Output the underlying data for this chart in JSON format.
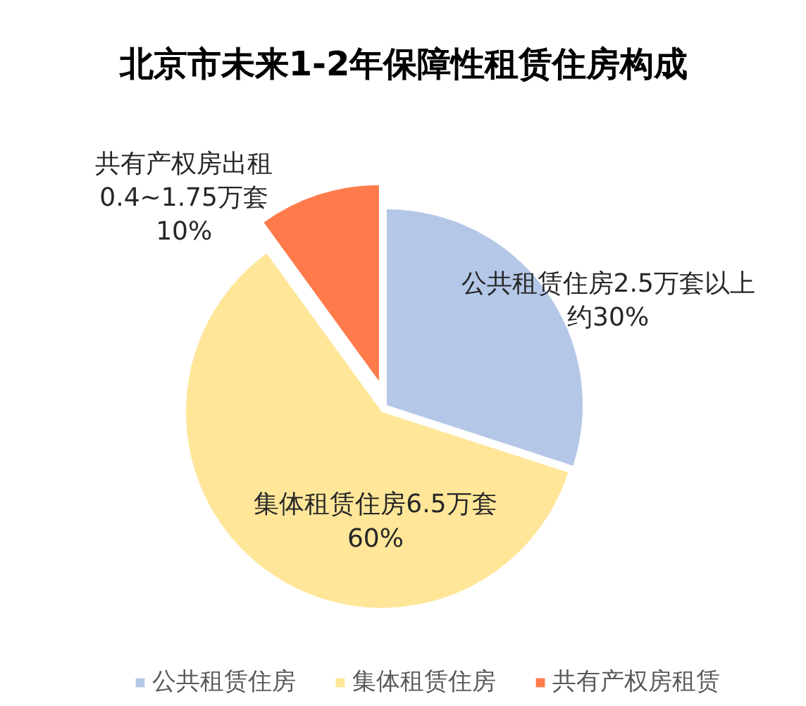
{
  "chart_data": {
    "type": "pie",
    "title": "北京市未来1-2年保障性租赁住房构成",
    "categories": [
      "公共租赁住房",
      "集体租赁住房",
      "共有产权房租赁"
    ],
    "values": [
      30,
      60,
      10
    ],
    "colors": [
      "#b4c7e7",
      "#ffe699",
      "#ff7b4b"
    ],
    "value_labels": [
      "公共租赁住房2.5万套以上约30%",
      "集体租赁住房6.5万套60%",
      "共有产权房出租0.4~1.75万套10%"
    ],
    "legend": "bottom"
  }
}
